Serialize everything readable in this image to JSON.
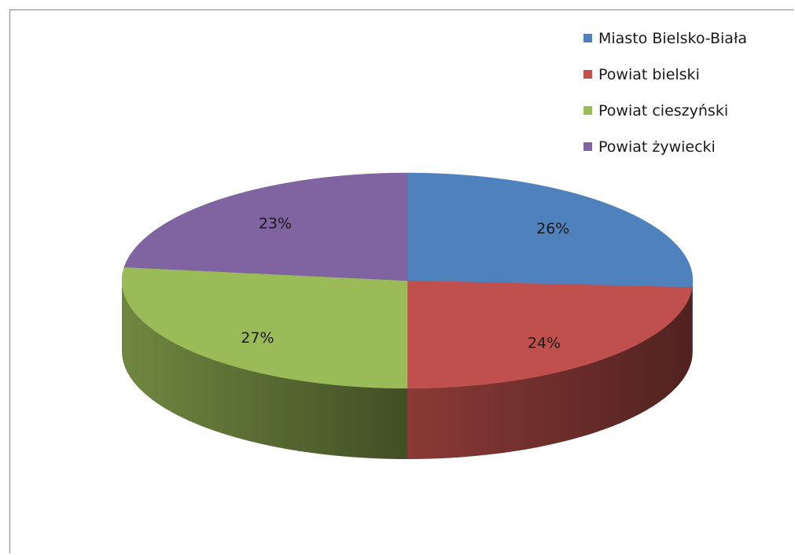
{
  "chart_data": {
    "type": "pie",
    "categories": [
      "Miasto Bielsko-Biała",
      "Powiat bielski",
      "Powiat cieszyński",
      "Powiat żywiecki"
    ],
    "values": [
      26,
      24,
      27,
      23
    ],
    "data_labels": [
      "26%",
      "24%",
      "27%",
      "23%"
    ],
    "colors": [
      "#4F81BD",
      "#C0504D",
      "#9BBB59",
      "#8064A2"
    ],
    "legend_position": "top-right",
    "style": "3d"
  }
}
